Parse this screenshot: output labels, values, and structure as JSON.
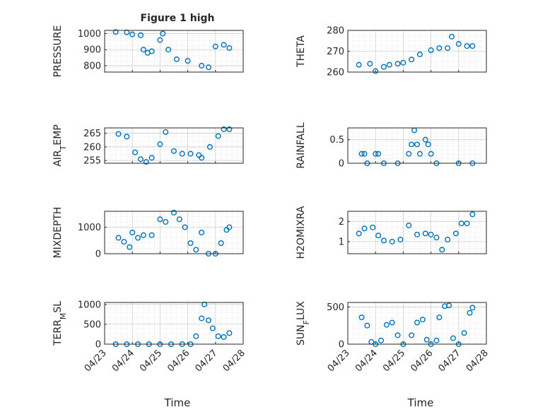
{
  "figure": {
    "title": "Figure 1 high",
    "xlabel": "Time"
  },
  "colors": {
    "marker": "#0072BD",
    "axis": "#262626"
  },
  "chart_data": [
    {
      "type": "scatter",
      "ylabel": "PRESSURE",
      "ylim": [
        760,
        1020
      ],
      "yticks": [
        800,
        900,
        1000
      ],
      "xlim": [
        0,
        5
      ],
      "xticks": [
        "04/23",
        "04/24",
        "04/25",
        "04/26",
        "04/27",
        "04/28"
      ],
      "grid": true,
      "points": [
        [
          0.4,
          1010
        ],
        [
          0.8,
          1008
        ],
        [
          1.0,
          995
        ],
        [
          1.3,
          990
        ],
        [
          1.4,
          900
        ],
        [
          1.55,
          880
        ],
        [
          1.7,
          890
        ],
        [
          2.0,
          960
        ],
        [
          2.1,
          1000
        ],
        [
          2.3,
          900
        ],
        [
          2.6,
          840
        ],
        [
          3.0,
          830
        ],
        [
          3.5,
          800
        ],
        [
          3.75,
          790
        ],
        [
          4.0,
          920
        ],
        [
          4.3,
          930
        ],
        [
          4.5,
          910
        ]
      ]
    },
    {
      "type": "scatter",
      "ylabel": "THETA",
      "ylim": [
        260,
        280
      ],
      "yticks": [
        260,
        270,
        280
      ],
      "xlim": [
        0,
        5
      ],
      "xticks": [
        "04/23",
        "04/24",
        "04/25",
        "04/26",
        "04/27",
        "04/28"
      ],
      "grid": true,
      "points": [
        [
          0.4,
          263.5
        ],
        [
          0.8,
          264
        ],
        [
          1.0,
          260.5
        ],
        [
          1.3,
          262.5
        ],
        [
          1.5,
          263.5
        ],
        [
          1.8,
          264
        ],
        [
          2.0,
          264.5
        ],
        [
          2.3,
          266
        ],
        [
          2.6,
          268.5
        ],
        [
          3.0,
          270.5
        ],
        [
          3.3,
          271.5
        ],
        [
          3.6,
          271.5
        ],
        [
          3.75,
          277
        ],
        [
          4.0,
          273.5
        ],
        [
          4.3,
          272.5
        ],
        [
          4.5,
          272.5
        ]
      ]
    },
    {
      "type": "scatter",
      "ylabel": "AIR_TEMP",
      "ylim": [
        254,
        267
      ],
      "yticks": [
        255,
        260,
        265
      ],
      "xlim": [
        0,
        5
      ],
      "xticks": [
        "04/23",
        "04/24",
        "04/25",
        "04/26",
        "04/27",
        "04/28"
      ],
      "grid": true,
      "points": [
        [
          0.5,
          264.8
        ],
        [
          0.8,
          263.8
        ],
        [
          1.1,
          258
        ],
        [
          1.3,
          255.5
        ],
        [
          1.5,
          254.5
        ],
        [
          1.7,
          256
        ],
        [
          2.0,
          261
        ],
        [
          2.2,
          265.5
        ],
        [
          2.5,
          258.5
        ],
        [
          2.8,
          257.5
        ],
        [
          3.1,
          257.5
        ],
        [
          3.4,
          257
        ],
        [
          3.5,
          256
        ],
        [
          3.8,
          260
        ],
        [
          4.1,
          264
        ],
        [
          4.3,
          266.5
        ],
        [
          4.5,
          266.5
        ]
      ]
    },
    {
      "type": "scatter",
      "ylabel": "RAINFALL",
      "ylim": [
        0,
        0.75
      ],
      "yticks": [
        0,
        0.5
      ],
      "xlim": [
        0,
        5
      ],
      "xticks": [
        "04/23",
        "04/24",
        "04/25",
        "04/26",
        "04/27",
        "04/28"
      ],
      "grid": true,
      "points": [
        [
          0.5,
          0.2
        ],
        [
          0.6,
          0.2
        ],
        [
          0.7,
          0
        ],
        [
          1.0,
          0.2
        ],
        [
          1.1,
          0.2
        ],
        [
          1.3,
          0
        ],
        [
          1.8,
          0
        ],
        [
          2.2,
          0.2
        ],
        [
          2.3,
          0.4
        ],
        [
          2.4,
          0.7
        ],
        [
          2.5,
          0.4
        ],
        [
          2.6,
          0.2
        ],
        [
          2.8,
          0.5
        ],
        [
          2.9,
          0.4
        ],
        [
          3.0,
          0.2
        ],
        [
          3.2,
          0
        ],
        [
          4.0,
          0
        ],
        [
          4.5,
          0
        ]
      ]
    },
    {
      "type": "scatter",
      "ylabel": "MIXDEPTH",
      "ylim": [
        0,
        1600
      ],
      "yticks": [
        0,
        1000
      ],
      "xlim": [
        0,
        5
      ],
      "xticks": [
        "04/23",
        "04/24",
        "04/25",
        "04/26",
        "04/27",
        "04/28"
      ],
      "grid": true,
      "points": [
        [
          0.5,
          600
        ],
        [
          0.7,
          450
        ],
        [
          0.9,
          250
        ],
        [
          1.0,
          800
        ],
        [
          1.2,
          600
        ],
        [
          1.4,
          700
        ],
        [
          1.7,
          700
        ],
        [
          2.0,
          1300
        ],
        [
          2.2,
          1200
        ],
        [
          2.5,
          1550
        ],
        [
          2.7,
          1300
        ],
        [
          2.9,
          1000
        ],
        [
          3.1,
          400
        ],
        [
          3.3,
          150
        ],
        [
          3.5,
          800
        ],
        [
          3.75,
          0
        ],
        [
          4.0,
          0
        ],
        [
          4.2,
          400
        ],
        [
          4.4,
          900
        ],
        [
          4.5,
          1000
        ]
      ]
    },
    {
      "type": "scatter",
      "ylabel": "H2OMIXRA",
      "ylim": [
        0.4,
        2.5
      ],
      "yticks": [
        1,
        2
      ],
      "xlim": [
        0,
        5
      ],
      "xticks": [
        "04/23",
        "04/24",
        "04/25",
        "04/26",
        "04/27",
        "04/28"
      ],
      "grid": true,
      "points": [
        [
          0.4,
          1.4
        ],
        [
          0.6,
          1.65
        ],
        [
          0.9,
          1.7
        ],
        [
          1.1,
          1.3
        ],
        [
          1.3,
          1.05
        ],
        [
          1.6,
          1
        ],
        [
          1.9,
          1.1
        ],
        [
          2.2,
          1.8
        ],
        [
          2.5,
          1.35
        ],
        [
          2.8,
          1.4
        ],
        [
          3.0,
          1.35
        ],
        [
          3.2,
          1.2
        ],
        [
          3.4,
          0.6
        ],
        [
          3.6,
          1.1
        ],
        [
          3.9,
          1.4
        ],
        [
          4.1,
          1.9
        ],
        [
          4.3,
          1.9
        ],
        [
          4.5,
          2.35
        ]
      ]
    },
    {
      "type": "scatter",
      "ylabel": "TERR_MSL",
      "ylim": [
        0,
        1050
      ],
      "yticks": [
        0,
        500,
        1000
      ],
      "xlim": [
        0,
        5
      ],
      "xticks": [
        "04/23",
        "04/24",
        "04/25",
        "04/26",
        "04/27",
        "04/28"
      ],
      "grid": true,
      "points": [
        [
          0.4,
          0
        ],
        [
          0.8,
          0
        ],
        [
          1.2,
          0
        ],
        [
          1.6,
          0
        ],
        [
          2.0,
          0
        ],
        [
          2.4,
          0
        ],
        [
          2.8,
          0
        ],
        [
          3.1,
          0
        ],
        [
          3.3,
          200
        ],
        [
          3.5,
          650
        ],
        [
          3.6,
          1000
        ],
        [
          3.75,
          600
        ],
        [
          3.9,
          400
        ],
        [
          4.1,
          200
        ],
        [
          4.3,
          180
        ],
        [
          4.5,
          280
        ]
      ]
    },
    {
      "type": "scatter",
      "ylabel": "SUN_FLUX",
      "ylim": [
        0,
        560
      ],
      "yticks": [
        0,
        500
      ],
      "xlim": [
        0,
        5
      ],
      "xticks": [
        "04/23",
        "04/24",
        "04/25",
        "04/26",
        "04/27",
        "04/28"
      ],
      "grid": true,
      "points": [
        [
          0.5,
          360
        ],
        [
          0.7,
          250
        ],
        [
          0.85,
          30
        ],
        [
          1.0,
          0
        ],
        [
          1.2,
          50
        ],
        [
          1.4,
          260
        ],
        [
          1.6,
          290
        ],
        [
          1.8,
          120
        ],
        [
          2.0,
          0
        ],
        [
          2.3,
          120
        ],
        [
          2.5,
          290
        ],
        [
          2.7,
          330
        ],
        [
          2.85,
          60
        ],
        [
          3.0,
          0
        ],
        [
          3.2,
          50
        ],
        [
          3.3,
          360
        ],
        [
          3.5,
          510
        ],
        [
          3.65,
          520
        ],
        [
          3.8,
          80
        ],
        [
          4.0,
          0
        ],
        [
          4.2,
          150
        ],
        [
          4.4,
          420
        ],
        [
          4.5,
          490
        ]
      ]
    }
  ]
}
